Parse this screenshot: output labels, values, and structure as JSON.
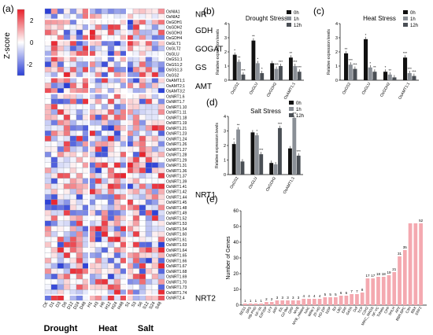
{
  "colors": {
    "heat_high": "#e8202a",
    "heat_mid": "#ffffff",
    "heat_low": "#2b3fd6",
    "bar_0h": "#111111",
    "bar_1h": "#8a8f96",
    "bar_12h": "#4a4f55",
    "gene_bar": "#f4a9b0"
  },
  "panels": {
    "a": "(a)",
    "b": "(b)",
    "c": "(c)",
    "d": "(d)",
    "e": "(e)"
  },
  "chart_data": [
    {
      "type": "heatmap",
      "panel": "a",
      "colorbar": {
        "label": "Z-score",
        "ticks": [
          "2",
          "0",
          "-2"
        ],
        "range": [
          -3,
          3
        ]
      },
      "columns": [
        "CK",
        "D1",
        "D3",
        "D6",
        "D12",
        "D24",
        "D48",
        "H1",
        "H3",
        "H6",
        "H12",
        "H24",
        "H48",
        "S1",
        "S3",
        "S6",
        "S12",
        "S24",
        "S48"
      ],
      "column_groups": [
        {
          "label": "Drought",
          "start": 0,
          "end": 6
        },
        {
          "label": "Heat",
          "start": 7,
          "end": 12
        },
        {
          "label": "Salt",
          "start": 13,
          "end": 18
        }
      ],
      "rows": [
        "OsNIA1",
        "OsNIA2",
        "OsGDH1",
        "OsGDH2",
        "OsGDH3",
        "OsGDH4",
        "OsGLT1",
        "OsGLT2",
        "OsGLU",
        "OsGS1;1",
        "OsGS1;2",
        "OsGS1;3",
        "OsGS2",
        "OsAMT1;1",
        "OsAMT2;1",
        "OsAMT3;2",
        "OsNRT1.6",
        "OsNRT1.7",
        "OsNRT1.10",
        "OsNRT1.11",
        "OsNRT1.18",
        "OsNRT1.19",
        "OsNRT1.21",
        "OsNRT1.23",
        "OsNRT1.24",
        "OsNRT1.26",
        "OsNRT1.27",
        "OsNRT1.28",
        "OsNRT1.29",
        "OsNRT1.31",
        "OsNRT1.36",
        "OsNRT1.37",
        "OsNRT1.39",
        "OsNRT1.41",
        "OsNRT1.42",
        "OsNRT1.44",
        "OsNRT1.45",
        "OsNRT1.48",
        "OsNRT1.49",
        "OsNRT1.52",
        "OsNRT1.53",
        "OsNRT1.54",
        "OsNRT1.60",
        "OsNRT1.61",
        "OsNRT1.63",
        "OsNRT1.64",
        "OsNRT1.65",
        "OsNRT1.66",
        "OsNRT1.67",
        "OsNRT1.68",
        "OsNRT1.69",
        "OsNRT1.70",
        "OsNRT1.73",
        "OsNRT1.74",
        "OsNRT2.4"
      ],
      "row_groups": [
        {
          "label": "NR",
          "start": 0,
          "end": 1
        },
        {
          "label": "GDH",
          "start": 2,
          "end": 5
        },
        {
          "label": "GOGAT",
          "start": 6,
          "end": 8
        },
        {
          "label": "GS",
          "start": 9,
          "end": 12
        },
        {
          "label": "AMT",
          "start": 13,
          "end": 15
        },
        {
          "label": "NRT1",
          "start": 16,
          "end": 53
        },
        {
          "label": "NRT2",
          "start": 54,
          "end": 54
        }
      ]
    },
    {
      "type": "bar",
      "panel": "b",
      "title": "Drought Stress",
      "ylabel": "Relative expression levels",
      "ylim": [
        0,
        4
      ],
      "yticks": [
        "0",
        "1",
        "2",
        "3",
        "4"
      ],
      "categories": [
        "OsGS2",
        "OsGLU",
        "OsGDH2",
        "OsAMT1;1"
      ],
      "series": [
        {
          "name": "0h",
          "values": [
            1.8,
            2.8,
            1.2,
            1.6
          ]
        },
        {
          "name": "1h",
          "values": [
            1.3,
            1.2,
            0.8,
            1.0
          ]
        },
        {
          "name": "12h",
          "values": [
            0.4,
            0.5,
            1.0,
            0.6
          ]
        }
      ],
      "marks": [
        [
          "*",
          "**",
          "***"
        ],
        [
          "**",
          "*",
          "*"
        ],
        [
          "",
          "***",
          "***"
        ],
        [
          "**",
          "***",
          "***"
        ]
      ]
    },
    {
      "type": "bar",
      "panel": "c",
      "title": "Heat Stress",
      "ylabel": "Relative expression levels",
      "ylim": [
        0,
        4
      ],
      "yticks": [
        "0",
        "1",
        "2",
        "3",
        "4"
      ],
      "categories": [
        "OsGS2",
        "OsGLU",
        "OsGDH2",
        "OsAMT1;1"
      ],
      "series": [
        {
          "name": "0h",
          "values": [
            1.9,
            2.9,
            0.6,
            1.6
          ]
        },
        {
          "name": "1h",
          "values": [
            1.1,
            0.9,
            0.4,
            0.5
          ]
        },
        {
          "name": "12h",
          "values": [
            0.8,
            0.6,
            0.2,
            0.3
          ]
        }
      ],
      "marks": [
        [
          "**",
          "***",
          "***"
        ],
        [
          "*",
          "*",
          "**"
        ],
        [
          "*",
          "**",
          ""
        ],
        [
          "***",
          "***",
          "***"
        ]
      ]
    },
    {
      "type": "bar",
      "panel": "d",
      "title": "Salt Stress",
      "ylabel": "Relative expression levels",
      "ylim": [
        0,
        4
      ],
      "yticks": [
        "0",
        "1",
        "2",
        "3",
        "4"
      ],
      "categories": [
        "OsGS2",
        "OsGLU",
        "OsGDH2",
        "OsAMT1;1"
      ],
      "series": [
        {
          "name": "0h",
          "values": [
            2.1,
            2.9,
            0.8,
            1.8
          ]
        },
        {
          "name": "1h",
          "values": [
            3.1,
            2.7,
            0.7,
            3.9
          ]
        },
        {
          "name": "12h",
          "values": [
            0.9,
            1.4,
            3.2,
            1.3
          ]
        }
      ],
      "marks": [
        [
          "*",
          "**",
          ""
        ],
        [
          "",
          "*",
          "***"
        ],
        [
          "",
          "",
          "***"
        ],
        [
          "",
          "***",
          "***"
        ]
      ]
    },
    {
      "type": "bar",
      "panel": "e",
      "ylabel": "Number of Genes",
      "ylim": [
        0,
        60
      ],
      "yticks": [
        "0",
        "10",
        "20",
        "30",
        "40",
        "50",
        "60"
      ],
      "categories": [
        "BES1",
        "SRS",
        "HB-PHD",
        "NF-YA",
        "E2F/DP",
        "LFY",
        "ARF",
        "EIL",
        "G2-like",
        "GRF",
        "MYB",
        "MYB_related",
        "NAC",
        "WRKY",
        "ZF-HD",
        "HD-ZIP",
        "bZIP",
        "B3",
        "LBD",
        "ERF",
        "GATA",
        "Dof",
        "TCP",
        "C2H2",
        "MIKC_MADS",
        "NF-YC",
        "Trihelix",
        "CPP",
        "bHLH",
        "AP2",
        "BBR-BPC",
        "C3H",
        "BBX",
        "ERF2"
      ],
      "values": [
        1,
        1,
        1,
        1,
        2,
        2,
        3,
        3,
        3,
        3,
        3,
        4,
        4,
        4,
        4,
        5,
        5,
        5,
        6,
        6,
        7,
        7,
        8,
        17,
        17,
        18,
        18,
        19,
        21,
        31,
        35,
        52,
        52,
        52
      ],
      "shown_labels": [
        "1",
        "1",
        "1",
        "1",
        "2",
        "2",
        "3",
        "3",
        "3",
        "3",
        "3",
        "4",
        "4",
        "4",
        "4",
        "5",
        "5",
        "5",
        "6",
        "6",
        "7",
        "7",
        "8",
        "17",
        "17",
        "18",
        "18",
        "19",
        "21",
        "31",
        "35",
        "",
        "",
        "52"
      ]
    }
  ]
}
